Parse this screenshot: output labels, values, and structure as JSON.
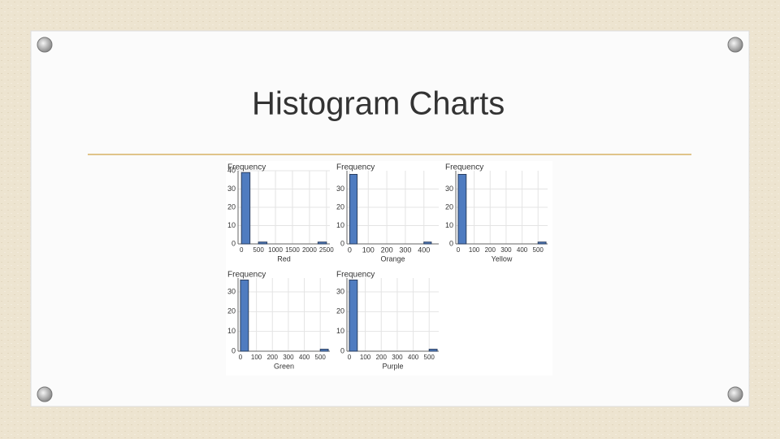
{
  "title": "Histogram Charts",
  "chart_data": [
    {
      "type": "histogram",
      "x_label": "Red",
      "y_label": "Frequency",
      "color": "#4f7cc0",
      "grid": true,
      "bins": [
        0,
        250,
        500,
        750,
        1000,
        1250,
        1500,
        1750,
        2000,
        2250,
        2500
      ],
      "counts": [
        39,
        0,
        1,
        0,
        0,
        0,
        0,
        0,
        0,
        1
      ],
      "xlim": [
        -100,
        2600
      ],
      "xticks": [
        0,
        500,
        1000,
        1500,
        2000,
        2500
      ],
      "ylim": [
        0,
        40
      ],
      "yticks": [
        0,
        10,
        20,
        30,
        40
      ]
    },
    {
      "type": "histogram",
      "x_label": "Orange",
      "y_label": "Frequency",
      "color": "#4f7cc0",
      "grid": true,
      "bins": [
        0,
        40,
        80,
        120,
        160,
        200,
        240,
        280,
        320,
        360,
        400,
        440
      ],
      "counts": [
        38,
        0,
        0,
        0,
        0,
        0,
        0,
        0,
        0,
        0,
        1
      ],
      "xlim": [
        -15,
        480
      ],
      "xticks": [
        0,
        100,
        200,
        300,
        400
      ],
      "ylim": [
        0,
        40
      ],
      "yticks": [
        0,
        10,
        20,
        30
      ]
    },
    {
      "type": "histogram",
      "x_label": "Yellow",
      "y_label": "Frequency",
      "color": "#4f7cc0",
      "grid": true,
      "bins": [
        0,
        50,
        100,
        150,
        200,
        250,
        300,
        350,
        400,
        450,
        500,
        550
      ],
      "counts": [
        38,
        0,
        0,
        0,
        0,
        0,
        0,
        0,
        0,
        0,
        1
      ],
      "xlim": [
        -15,
        560
      ],
      "xticks": [
        0,
        100,
        200,
        300,
        400,
        500
      ],
      "ylim": [
        0,
        40
      ],
      "yticks": [
        0,
        10,
        20,
        30
      ]
    },
    {
      "type": "histogram",
      "x_label": "Green",
      "y_label": "Frequency",
      "color": "#4f7cc0",
      "grid": true,
      "bins": [
        0,
        50,
        100,
        150,
        200,
        250,
        300,
        350,
        400,
        450,
        500,
        550
      ],
      "counts": [
        36,
        0,
        0,
        0,
        0,
        0,
        0,
        0,
        0,
        0,
        1
      ],
      "xlim": [
        -15,
        560
      ],
      "xticks": [
        0,
        100,
        200,
        300,
        400,
        500
      ],
      "ylim": [
        0,
        37
      ],
      "yticks": [
        0,
        10,
        20,
        30
      ]
    },
    {
      "type": "histogram",
      "x_label": "Purple",
      "y_label": "Frequency",
      "color": "#4f7cc0",
      "grid": true,
      "bins": [
        0,
        50,
        100,
        150,
        200,
        250,
        300,
        350,
        400,
        450,
        500,
        550
      ],
      "counts": [
        36,
        0,
        0,
        0,
        0,
        0,
        0,
        0,
        0,
        0,
        1
      ],
      "xlim": [
        -15,
        560
      ],
      "xticks": [
        0,
        100,
        200,
        300,
        400,
        500
      ],
      "ylim": [
        0,
        37
      ],
      "yticks": [
        0,
        10,
        20,
        30
      ]
    }
  ]
}
